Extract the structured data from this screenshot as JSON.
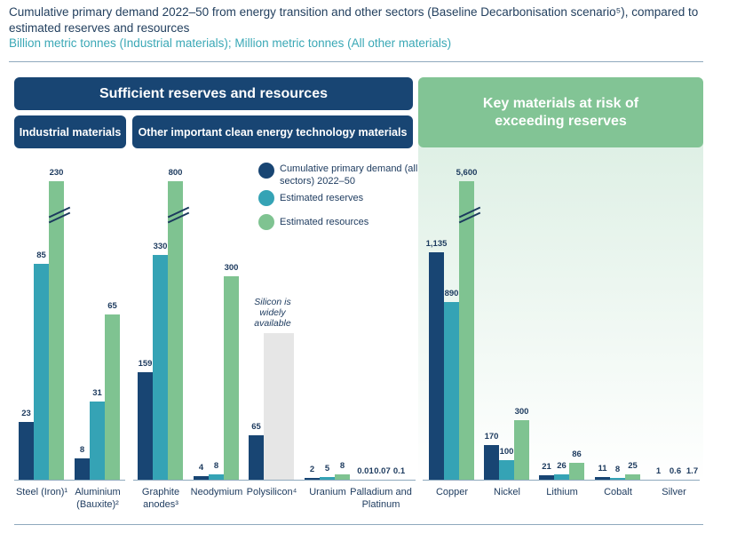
{
  "chart_data": {
    "type": "bar",
    "title": "Cumulative primary demand 2022–50 from energy transition and other sectors (Baseline Decarbonisation scenario⁵), compared to estimated reserves and resources",
    "subtitle": "Billion metric tonnes (Industrial materials); Million metric tonnes (All other materials)",
    "groups": {
      "sufficient": "Sufficient reserves and resources",
      "industrial": "Industrial materials",
      "other": "Other important clean energy technology materials",
      "risk": "Key materials at risk of exceeding reserves"
    },
    "legend": [
      "Cumulative primary demand (all sectors) 2022–50",
      "Estimated reserves",
      "Estimated resources"
    ],
    "colors": {
      "demand": "#184573",
      "reserves": "#35a3b5",
      "resources": "#7fc391",
      "na": "#e6e6e6"
    },
    "categories": [
      "Steel (Iron)¹",
      "Aluminium (Bauxite)²",
      "Graphite anodes³",
      "Neodymium",
      "Polysilicon⁴",
      "Uranium",
      "Palladium and Platinum",
      "Copper",
      "Nickel",
      "Lithium",
      "Cobalt",
      "Silver"
    ],
    "series": [
      {
        "name": "Cumulative primary demand (all sectors) 2022–50",
        "values": [
          "23",
          "8",
          "159",
          "4",
          "65",
          "2",
          "0.01",
          "1,135",
          "170",
          "21",
          "11",
          "1"
        ]
      },
      {
        "name": "Estimated reserves",
        "values": [
          "85",
          "31",
          "330",
          "8",
          null,
          "5",
          "0.07",
          "890",
          "100",
          "26",
          "8",
          "0.6"
        ]
      },
      {
        "name": "Estimated resources",
        "values": [
          "230",
          "65",
          "800",
          "300",
          null,
          "8",
          "0.1",
          "5,600",
          "300",
          "86",
          "25",
          "1.7"
        ]
      }
    ],
    "axis_breaks": [
      "Steel (Iron)¹",
      "Graphite anodes³",
      "Copper"
    ],
    "annotation": "Silicon is widely available"
  }
}
